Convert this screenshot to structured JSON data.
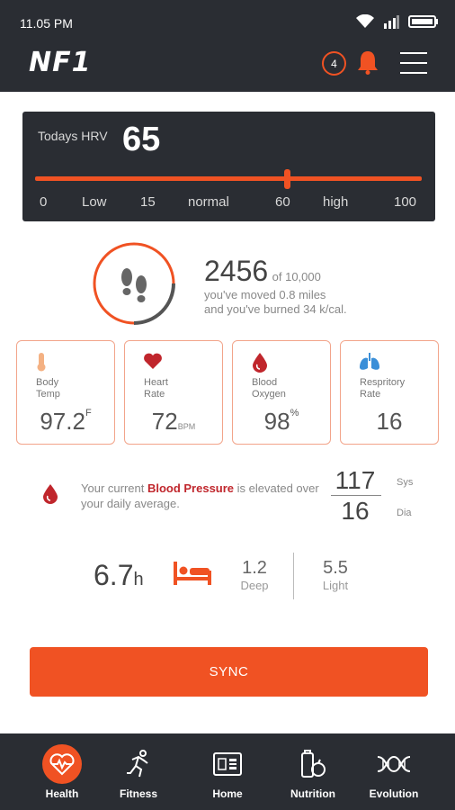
{
  "status": {
    "time": "11.05 PM"
  },
  "header": {
    "logo": "NF1",
    "notification_count": "4"
  },
  "hrv": {
    "label": "Todays HRV",
    "value": "65",
    "level": 65,
    "ticks": [
      "0",
      "Low",
      "15",
      "normal",
      "60",
      "high",
      "100"
    ]
  },
  "steps": {
    "count": "2456",
    "goal": "of 10,000",
    "progress": 0.25,
    "moved": "you've moved 0.8 miles",
    "burned": "and you've burned 34 k/cal."
  },
  "vitals": [
    {
      "label1": "Body",
      "label2": "Temp",
      "value": "97.2",
      "unit": "F",
      "unit_style": "sup"
    },
    {
      "label1": "Heart",
      "label2": "Rate",
      "value": "72",
      "unit": "BPM",
      "unit_style": "small"
    },
    {
      "label1": "Blood",
      "label2": "Oxygen",
      "value": "98",
      "unit": "%",
      "unit_style": "sup"
    },
    {
      "label1": "Respritory",
      "label2": "Rate",
      "value": "16",
      "unit": "",
      "unit_style": "none"
    }
  ],
  "blood_pressure": {
    "text_before": "Your current ",
    "highlight": "Blood Pressure",
    "text_after": " is elevated over your daily average.",
    "sys": "117",
    "sys_label": "Sys",
    "dia": "16",
    "dia_label": "Dia"
  },
  "sleep": {
    "total": "6.7",
    "total_unit": "h",
    "deep": "1.2",
    "deep_label": "Deep",
    "light": "5.5",
    "light_label": "Light"
  },
  "sync_label": "SYNC",
  "nav": [
    {
      "label": "Health",
      "icon": "heart-pulse-icon",
      "active": true
    },
    {
      "label": "Fitness",
      "icon": "runner-icon",
      "active": false
    },
    {
      "label": "Home",
      "icon": "dashboard-icon",
      "active": false
    },
    {
      "label": "Nutrition",
      "icon": "food-icon",
      "active": false
    },
    {
      "label": "Evolution",
      "icon": "dna-icon",
      "active": false
    }
  ],
  "colors": {
    "accent": "#f05223",
    "dark": "#2a2d33",
    "bp_highlight": "#c0262c"
  }
}
